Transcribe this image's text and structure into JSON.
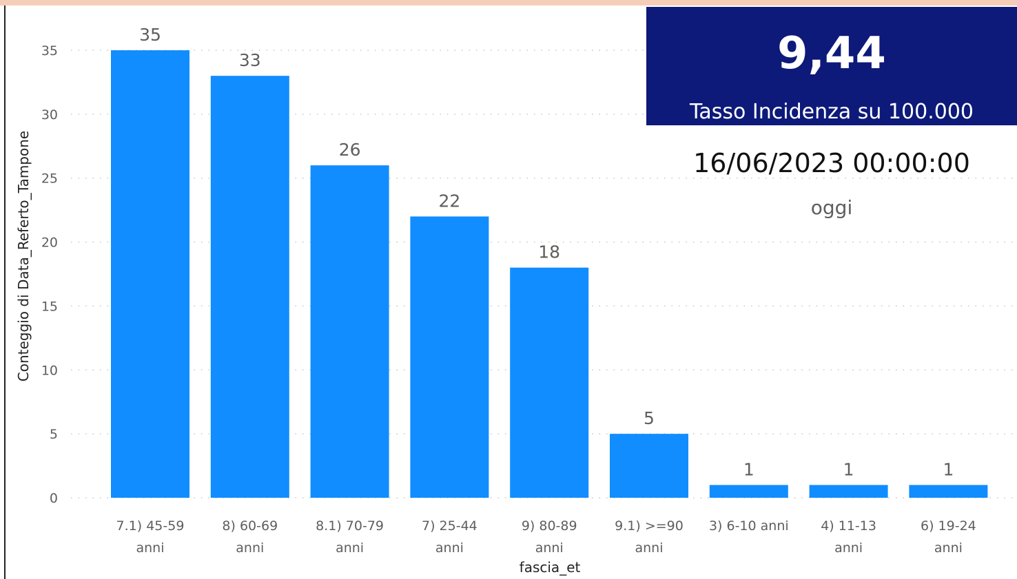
{
  "kpi": {
    "value": "9,44",
    "label": "Tasso Incidenza su 100.000"
  },
  "date_card": {
    "datetime": "16/06/2023 00:00:00",
    "label": "oggi"
  },
  "colors": {
    "bar": "#118dff",
    "kpi_background": "#0d1a7a",
    "grid": "#c8c6c4",
    "text": "#252423"
  },
  "chart_data": {
    "type": "bar",
    "xlabel": "fascia_et",
    "ylabel": "Conteggio di Data_Referto_Tampone",
    "ylim": [
      0,
      35
    ],
    "yticks": [
      0,
      5,
      10,
      15,
      20,
      25,
      30,
      35
    ],
    "grid": true,
    "data_labels": true,
    "categories": [
      [
        "7.1) 45-59",
        "anni"
      ],
      [
        "8) 60-69",
        "anni"
      ],
      [
        "8.1) 70-79",
        "anni"
      ],
      [
        "7) 25-44",
        "anni"
      ],
      [
        "9) 80-89",
        "anni"
      ],
      [
        "9.1) >=90",
        "anni"
      ],
      [
        "3) 6-10 anni"
      ],
      [
        "4) 11-13",
        "anni"
      ],
      [
        "6) 19-24",
        "anni"
      ]
    ],
    "values": [
      35,
      33,
      26,
      22,
      18,
      5,
      1,
      1,
      1
    ]
  }
}
